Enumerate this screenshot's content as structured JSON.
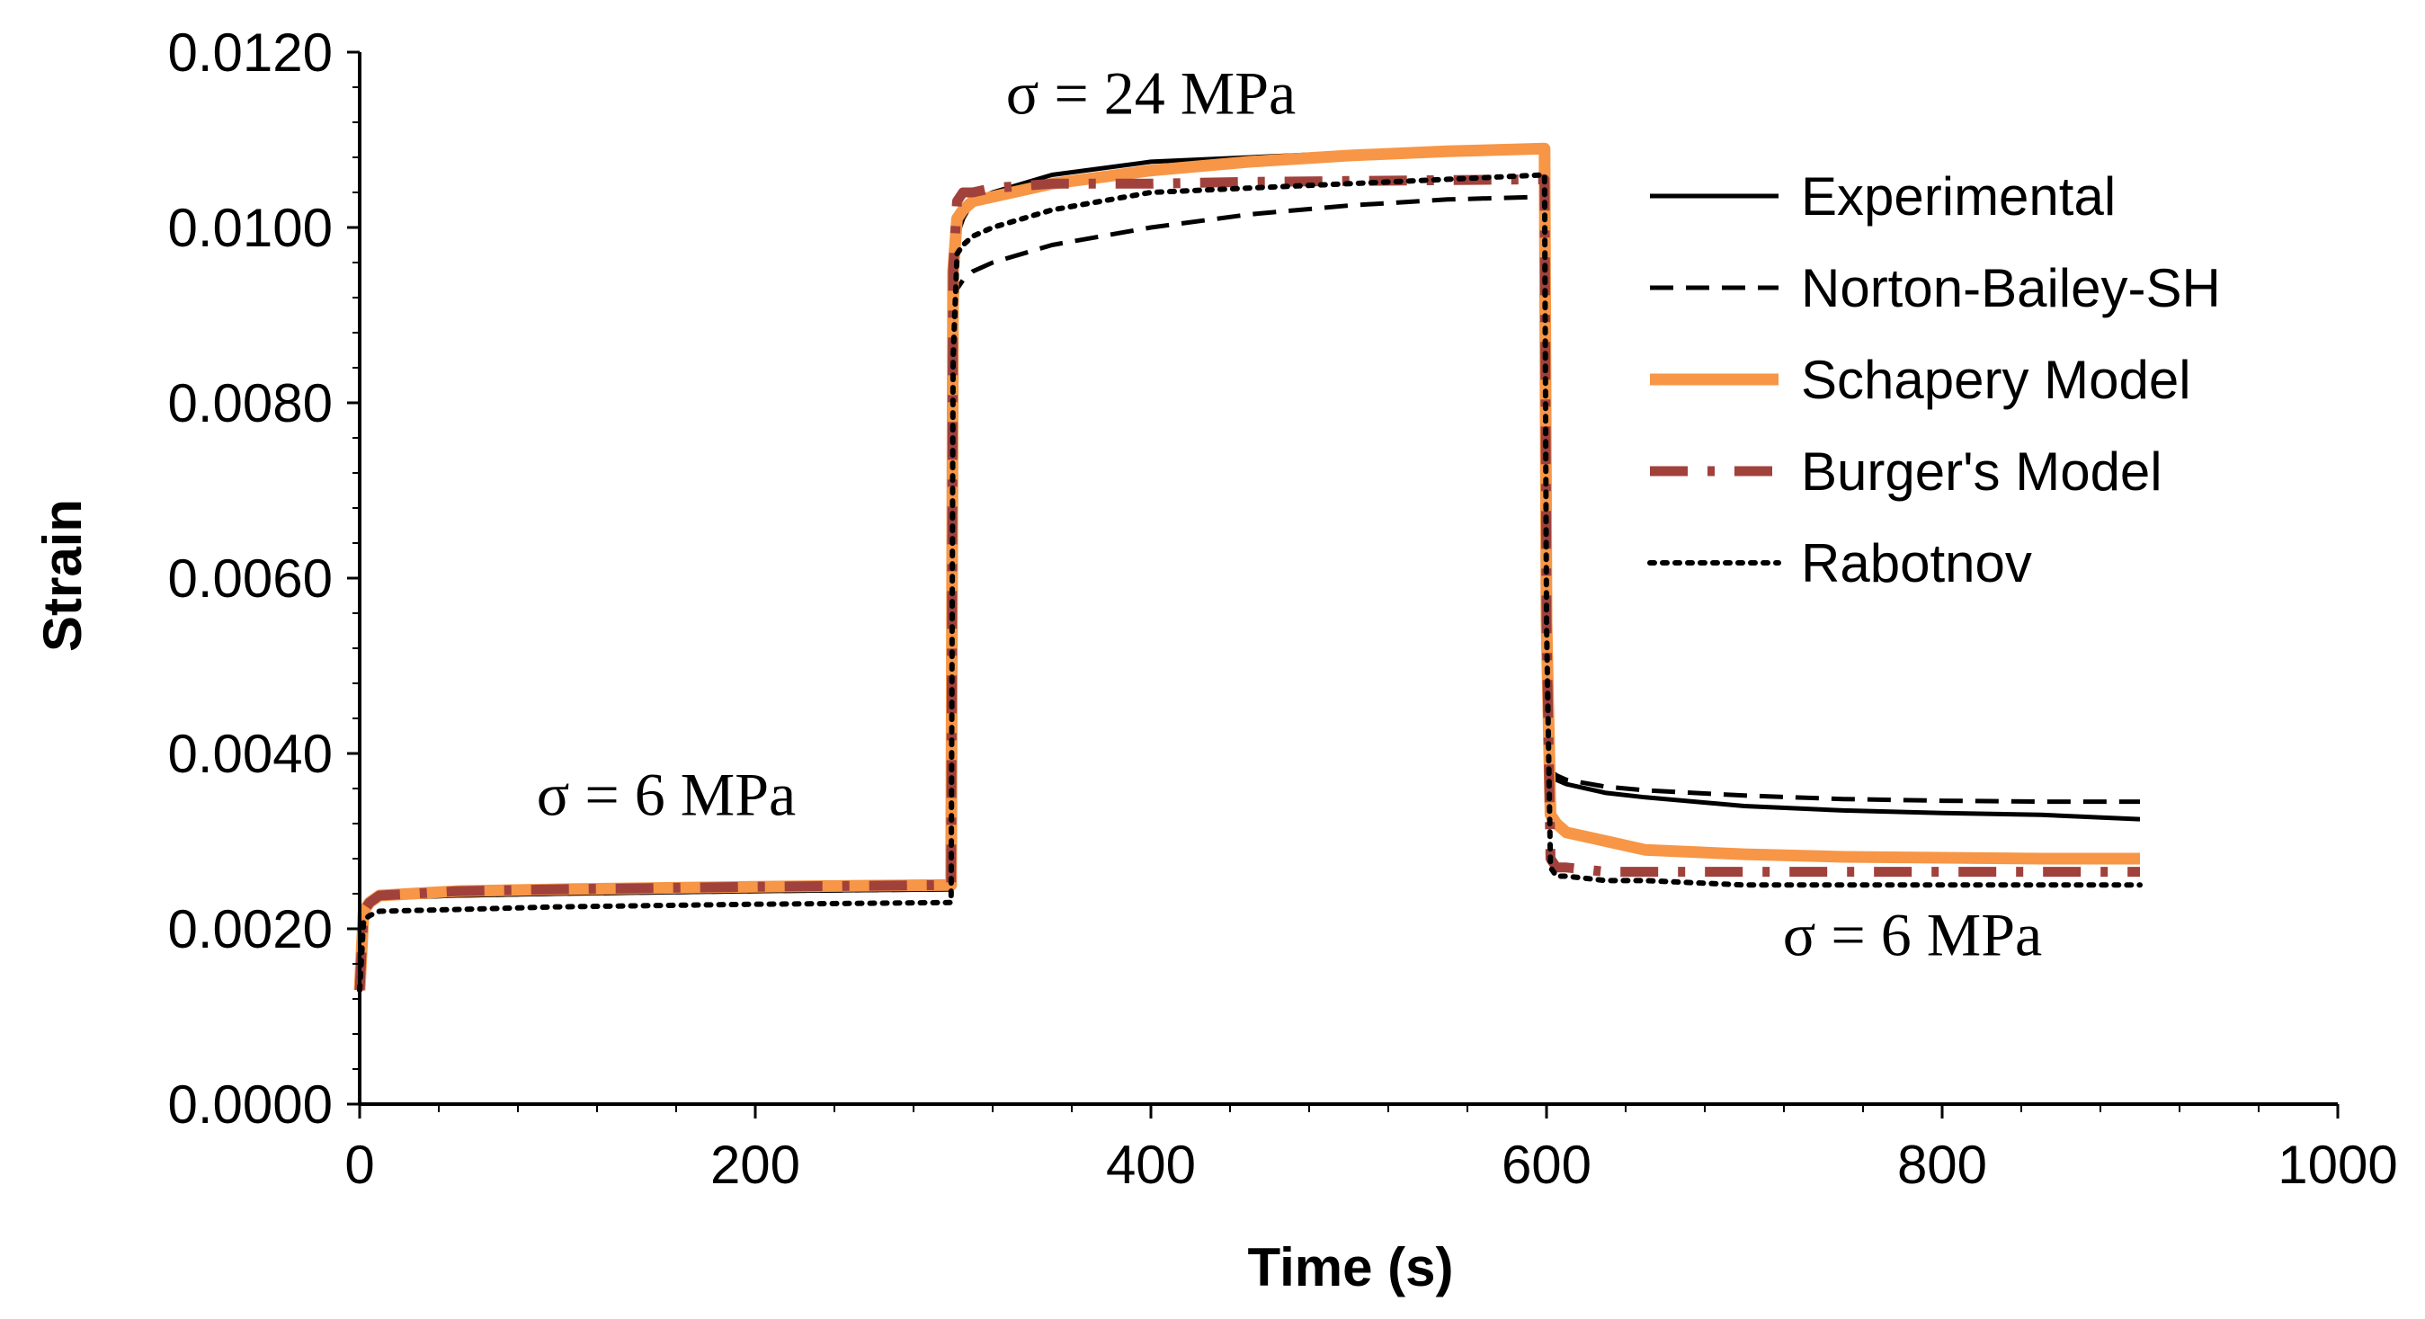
{
  "chart_data": {
    "type": "line",
    "title": "",
    "xlabel": "Time (s)",
    "ylabel": "Strain",
    "xlim": [
      0,
      1000
    ],
    "ylim": [
      0,
      0.012
    ],
    "x_ticks": [
      0,
      200,
      400,
      600,
      800,
      1000
    ],
    "x_tick_labels": [
      "0",
      "200",
      "400",
      "600",
      "800",
      "1000"
    ],
    "y_ticks": [
      0,
      0.002,
      0.004,
      0.006,
      0.008,
      0.01,
      0.012
    ],
    "y_tick_labels": [
      "0.0000",
      "0.0020",
      "0.0040",
      "0.0060",
      "0.0080",
      "0.0100",
      "0.0120"
    ],
    "grid": false,
    "legend_position": "right",
    "annotations": [
      {
        "text": "σ = 24 MPa",
        "x": 400,
        "y": 0.0113
      },
      {
        "text": "σ = 6 MPa",
        "x": 155,
        "y": 0.0033
      },
      {
        "text": "σ = 6 MPa",
        "x": 785,
        "y": 0.0017
      }
    ],
    "series": [
      {
        "name": "Experimental",
        "color": "#000000",
        "style": "solid",
        "x": [
          0,
          2,
          5,
          10,
          50,
          100,
          200,
          299,
          300,
          302,
          305,
          310,
          320,
          350,
          400,
          450,
          500,
          550,
          599,
          600,
          602,
          605,
          610,
          630,
          650,
          700,
          750,
          800,
          850,
          900
        ],
        "y": [
          0.0013,
          0.0021,
          0.0023,
          0.00235,
          0.00238,
          0.0024,
          0.00243,
          0.00245,
          0.009,
          0.0099,
          0.0101,
          0.0103,
          0.0104,
          0.0106,
          0.01075,
          0.0108,
          0.01085,
          0.01088,
          0.0109,
          0.0055,
          0.0038,
          0.0037,
          0.00365,
          0.00355,
          0.0035,
          0.0034,
          0.00335,
          0.00332,
          0.0033,
          0.00325
        ]
      },
      {
        "name": "Norton-Bailey-SH",
        "color": "#000000",
        "style": "dashed",
        "x": [
          0,
          2,
          5,
          10,
          50,
          100,
          200,
          299,
          300,
          302,
          305,
          310,
          320,
          350,
          400,
          450,
          500,
          550,
          599,
          600,
          602,
          605,
          610,
          630,
          650,
          700,
          750,
          800,
          850,
          900
        ],
        "y": [
          0.0013,
          0.0021,
          0.0023,
          0.00235,
          0.00238,
          0.0024,
          0.00243,
          0.00245,
          0.0085,
          0.0093,
          0.0094,
          0.0095,
          0.0096,
          0.0098,
          0.01,
          0.01015,
          0.01025,
          0.01032,
          0.01035,
          0.0055,
          0.0038,
          0.00375,
          0.0037,
          0.00362,
          0.00358,
          0.00352,
          0.00348,
          0.00346,
          0.00345,
          0.00345
        ]
      },
      {
        "name": "Schapery Model",
        "color": "#F79646",
        "style": "solid-thick",
        "x": [
          0,
          2,
          5,
          10,
          50,
          100,
          200,
          299,
          300,
          302,
          305,
          310,
          320,
          350,
          400,
          450,
          500,
          550,
          599,
          600,
          602,
          605,
          610,
          630,
          650,
          700,
          750,
          800,
          850,
          900
        ],
        "y": [
          0.0013,
          0.0022,
          0.0023,
          0.00238,
          0.00243,
          0.00245,
          0.00248,
          0.0025,
          0.0095,
          0.0101,
          0.0102,
          0.0103,
          0.01035,
          0.0105,
          0.01065,
          0.01075,
          0.01082,
          0.01087,
          0.0109,
          0.0055,
          0.0033,
          0.0032,
          0.0031,
          0.003,
          0.0029,
          0.00285,
          0.00282,
          0.00281,
          0.0028,
          0.0028
        ]
      },
      {
        "name": "Burger's Model",
        "color": "#A0413C",
        "style": "dash-dot",
        "x": [
          0,
          2,
          5,
          10,
          50,
          100,
          200,
          299,
          300,
          302,
          305,
          310,
          320,
          350,
          400,
          450,
          500,
          550,
          599,
          600,
          602,
          605,
          610,
          630,
          650,
          700,
          750,
          800,
          850,
          900
        ],
        "y": [
          0.0013,
          0.0022,
          0.0023,
          0.00238,
          0.00243,
          0.00245,
          0.00248,
          0.0025,
          0.0095,
          0.0103,
          0.0104,
          0.0104,
          0.01045,
          0.0105,
          0.0105,
          0.01052,
          0.01053,
          0.01054,
          0.01055,
          0.0055,
          0.0028,
          0.0027,
          0.0027,
          0.00265,
          0.00265,
          0.00265,
          0.00265,
          0.00265,
          0.00265,
          0.00265
        ]
      },
      {
        "name": "Rabotnov",
        "color": "#000000",
        "style": "dotted",
        "x": [
          0,
          2,
          5,
          10,
          50,
          100,
          200,
          299,
          300,
          302,
          305,
          310,
          320,
          350,
          400,
          450,
          500,
          550,
          599,
          600,
          602,
          605,
          610,
          630,
          650,
          700,
          750,
          800,
          850,
          900
        ],
        "y": [
          0.0013,
          0.0021,
          0.00215,
          0.0022,
          0.00222,
          0.00225,
          0.00228,
          0.0023,
          0.0085,
          0.0097,
          0.0098,
          0.0099,
          0.01,
          0.0102,
          0.0104,
          0.01045,
          0.0105,
          0.01055,
          0.0106,
          0.0055,
          0.0027,
          0.0026,
          0.0026,
          0.00255,
          0.00255,
          0.0025,
          0.0025,
          0.0025,
          0.0025,
          0.0025
        ]
      }
    ]
  }
}
